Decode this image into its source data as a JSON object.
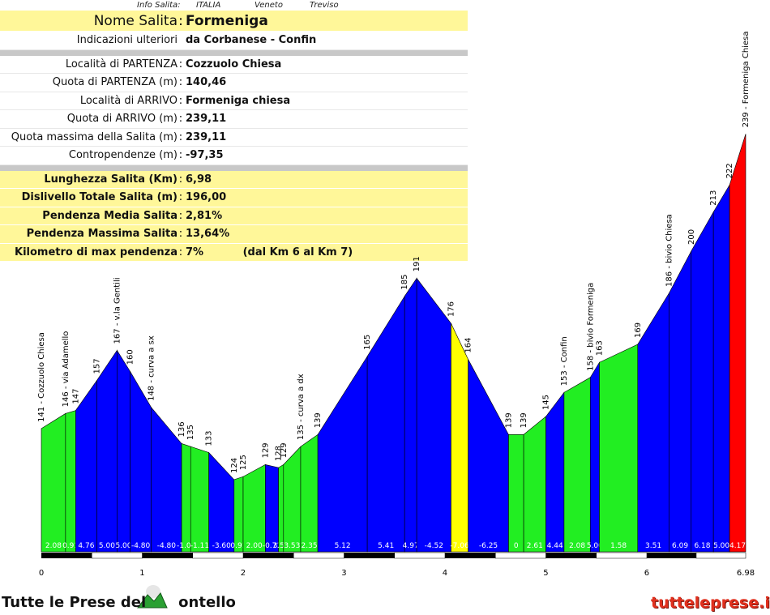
{
  "info_header": {
    "label": "Info Salita:",
    "country": "ITALIA",
    "region": "Veneto",
    "province": "Treviso"
  },
  "rows": [
    {
      "label": "Nome Salita",
      "value": "Formeniga"
    },
    {
      "label": "Indicazioni ulteriori",
      "value": "da Corbanese - Confin"
    },
    {
      "label": "Località di PARTENZA",
      "value": "Cozzuolo Chiesa"
    },
    {
      "label": "Quota di PARTENZA (m)",
      "value": "140,46"
    },
    {
      "label": "Località di ARRIVO",
      "value": "Formeniga chiesa"
    },
    {
      "label": "Quota di ARRIVO (m)",
      "value": "239,11"
    },
    {
      "label": "Quota massima della Salita (m)",
      "value": "239,11"
    },
    {
      "label": "Contropendenze (m)",
      "value": "-97,35"
    },
    {
      "label": "Lunghezza Salita (Km)",
      "value": "6,98"
    },
    {
      "label": "Dislivello Totale Salita (m)",
      "value": "196,00"
    },
    {
      "label": "Pendenza Media Salita",
      "value": "2,81%"
    },
    {
      "label": "Pendenza Massima Salita",
      "value": "13,64%"
    },
    {
      "label": "Kilometro di max pendenza",
      "value": "7%",
      "extra": "(dal Km 6 al Km 7)"
    }
  ],
  "chart_data": {
    "type": "area",
    "xlabel": "",
    "ylabel": "",
    "xlim": [
      0,
      6.98
    ],
    "x_ticks": [
      "0",
      "1",
      "2",
      "3",
      "4",
      "5",
      "6",
      "6.98"
    ],
    "x_tick_values": [
      0,
      1,
      2,
      3,
      4,
      5,
      6,
      6.98
    ],
    "points": [
      {
        "x": 0.0,
        "y": 141,
        "label": "141 - Cozzuolo Chiesa"
      },
      {
        "x": 0.24,
        "y": 146,
        "label": "146 - via Adamello"
      },
      {
        "x": 0.34,
        "y": 147,
        "label": "147"
      },
      {
        "x": 0.55,
        "y": 157,
        "label": "157"
      },
      {
        "x": 0.75,
        "y": 167,
        "label": "167 - v.la Gentili"
      },
      {
        "x": 0.88,
        "y": 160,
        "label": "160"
      },
      {
        "x": 1.09,
        "y": 148,
        "label": "148 - curva a sx"
      },
      {
        "x": 1.39,
        "y": 136,
        "label": "136"
      },
      {
        "x": 1.48,
        "y": 135,
        "label": "135"
      },
      {
        "x": 1.66,
        "y": 133,
        "label": "133"
      },
      {
        "x": 1.91,
        "y": 124,
        "label": "124"
      },
      {
        "x": 2.0,
        "y": 125,
        "label": "125"
      },
      {
        "x": 2.22,
        "y": 129,
        "label": "129"
      },
      {
        "x": 2.35,
        "y": 128,
        "label": "128"
      },
      {
        "x": 2.4,
        "y": 129,
        "label": "129"
      },
      {
        "x": 2.57,
        "y": 135,
        "label": "135 - curva a dx"
      },
      {
        "x": 2.74,
        "y": 139,
        "label": "139"
      },
      {
        "x": 3.23,
        "y": 165,
        "label": "165"
      },
      {
        "x": 3.6,
        "y": 185,
        "label": "185"
      },
      {
        "x": 3.72,
        "y": 191,
        "label": "191"
      },
      {
        "x": 4.06,
        "y": 176,
        "label": "176"
      },
      {
        "x": 4.23,
        "y": 164,
        "label": "164"
      },
      {
        "x": 4.63,
        "y": 139,
        "label": "139"
      },
      {
        "x": 4.78,
        "y": 139,
        "label": "139"
      },
      {
        "x": 5.0,
        "y": 145,
        "label": "145"
      },
      {
        "x": 5.18,
        "y": 153,
        "label": "153 - Confin"
      },
      {
        "x": 5.44,
        "y": 158,
        "label": "158 - bivio Formeniga"
      },
      {
        "x": 5.53,
        "y": 163,
        "label": "163"
      },
      {
        "x": 5.91,
        "y": 169,
        "label": "169"
      },
      {
        "x": 6.22,
        "y": 186,
        "label": "186 - bivio Chiesa"
      },
      {
        "x": 6.44,
        "y": 200,
        "label": "200"
      },
      {
        "x": 6.66,
        "y": 213,
        "label": "213"
      },
      {
        "x": 6.82,
        "y": 222,
        "label": "222"
      },
      {
        "x": 6.98,
        "y": 239,
        "label": "239 - Formeniga Chiesa"
      }
    ],
    "segment_gradients": [
      "2.08",
      "0.91",
      "4.76",
      "5.00",
      "5.00",
      "-4.80",
      "-4.80",
      "-1.00",
      "-1.11",
      "-3.60",
      "0.91",
      "2.00",
      "-0.71",
      "3.53",
      "3.53",
      "2.35",
      "5.12",
      "5.41",
      "4.97",
      "-4.52",
      "-7.06",
      "-6.25",
      "0",
      "2.61",
      "4.44",
      "2.08",
      "5.00",
      "1.58",
      "3.51",
      "6.09",
      "6.18",
      "5.00",
      "4.17"
    ],
    "segment_colors": [
      "#22ee22",
      "#22ee22",
      "#0000ff",
      "#0000ff",
      "#0000ff",
      "#0000ff",
      "#0000ff",
      "#22ee22",
      "#22ee22",
      "#0000ff",
      "#22ee22",
      "#22ee22",
      "#0000ff",
      "#22ee22",
      "#22ee22",
      "#22ee22",
      "#0000ff",
      "#0000ff",
      "#0000ff",
      "#0000ff",
      "#ffff00",
      "#0000ff",
      "#22ee22",
      "#22ee22",
      "#0000ff",
      "#22ee22",
      "#0000ff",
      "#22ee22",
      "#0000ff",
      "#0000ff",
      "#0000ff",
      "#0000ff",
      "#ff0000"
    ]
  },
  "footer": {
    "left": "Tutte le Prese del",
    "left_tail": "ontello",
    "right": "tutteleprese.it"
  }
}
